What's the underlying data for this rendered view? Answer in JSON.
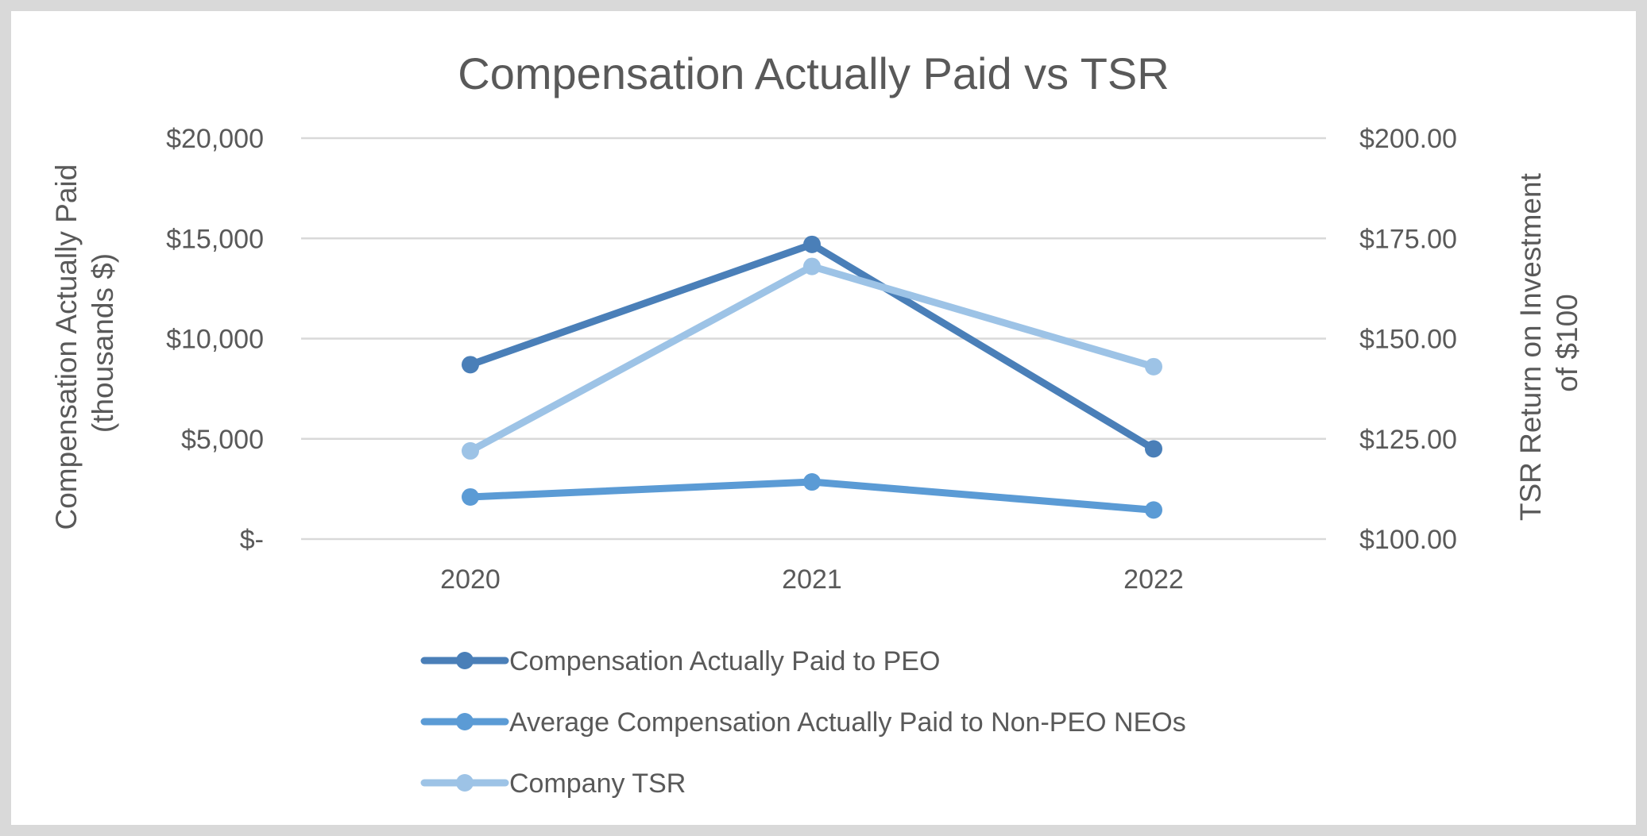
{
  "chart_data": {
    "type": "line",
    "title": "Compensation Actually Paid vs TSR",
    "categories": [
      "2020",
      "2021",
      "2022"
    ],
    "y_left": {
      "label_lines": [
        "Compensation Actually Paid",
        "(thousands $)"
      ],
      "range": [
        0,
        20000
      ],
      "ticks": [
        0,
        5000,
        10000,
        15000,
        20000
      ],
      "tick_labels": [
        "$-",
        "$5,000",
        "$10,000",
        "$15,000",
        "$20,000"
      ]
    },
    "y_right": {
      "label_lines": [
        "TSR Return on Investment",
        "of $100"
      ],
      "range": [
        100,
        200
      ],
      "ticks": [
        100,
        125,
        150,
        175,
        200
      ],
      "tick_labels": [
        "$100.00",
        "$125.00",
        "$150.00",
        "$175.00",
        "$200.00"
      ]
    },
    "grid": true,
    "legend_position": "bottom",
    "series": [
      {
        "name": "Compensation Actually Paid to PEO",
        "axis": "left",
        "color": "#4a7fb8",
        "values": [
          8700,
          14700,
          4500
        ]
      },
      {
        "name": "Average Compensation Actually Paid to Non-PEO NEOs",
        "axis": "left",
        "color": "#5b9bd5",
        "values": [
          2100,
          2850,
          1450
        ]
      },
      {
        "name": "Company TSR",
        "axis": "right",
        "color": "#9dc3e6",
        "values": [
          122,
          168,
          143
        ]
      }
    ]
  }
}
